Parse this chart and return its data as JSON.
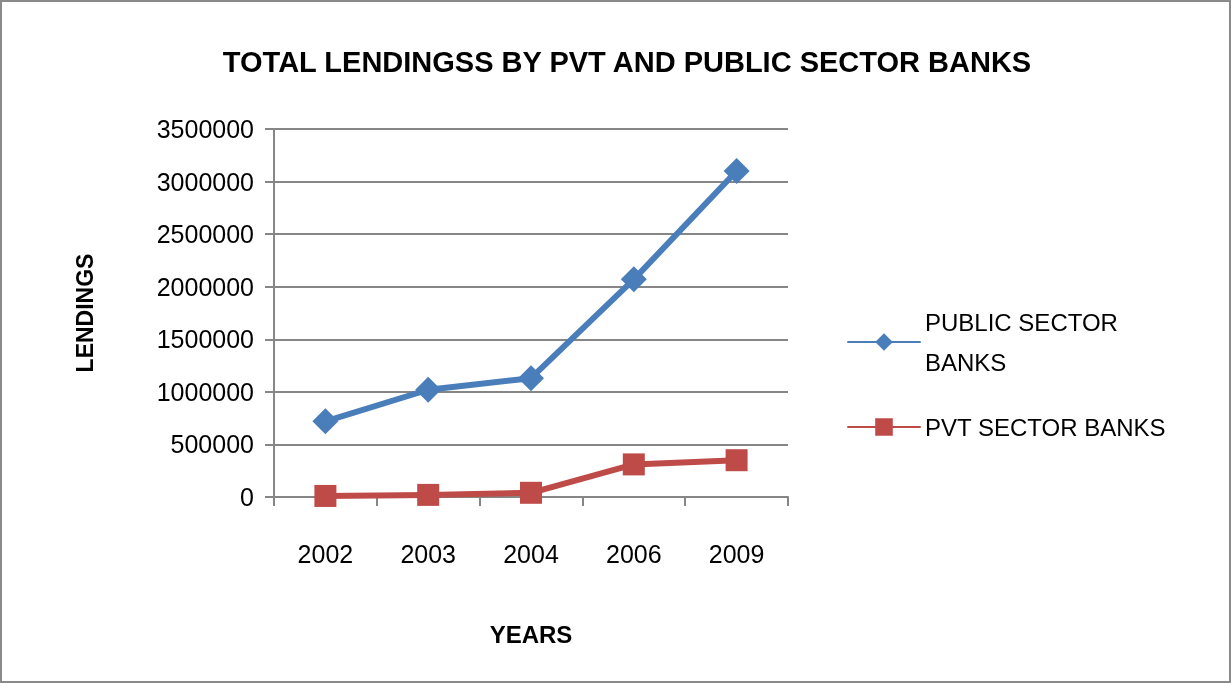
{
  "chart_data": {
    "type": "line",
    "title": "TOTAL LENDINGSS BY PVT AND PUBLIC SECTOR BANKS",
    "xlabel": "YEARS",
    "ylabel": "LENDINGS",
    "categories": [
      "2002",
      "2003",
      "2004",
      "2006",
      "2009"
    ],
    "series": [
      {
        "name": "PUBLIC SECTOR BANKS",
        "color": "#4a7ebb",
        "marker": "diamond",
        "values": [
          720000,
          1020000,
          1130000,
          2070000,
          3100000
        ]
      },
      {
        "name": "PVT SECTOR BANKS",
        "color": "#be4b48",
        "marker": "square",
        "values": [
          10000,
          20000,
          40000,
          310000,
          350000
        ]
      }
    ],
    "ylim": [
      0,
      3500000
    ],
    "yticks": [
      0,
      500000,
      1000000,
      1500000,
      2000000,
      2500000,
      3000000,
      3500000
    ],
    "grid": "y",
    "legend": "right",
    "line_style": "solid"
  }
}
